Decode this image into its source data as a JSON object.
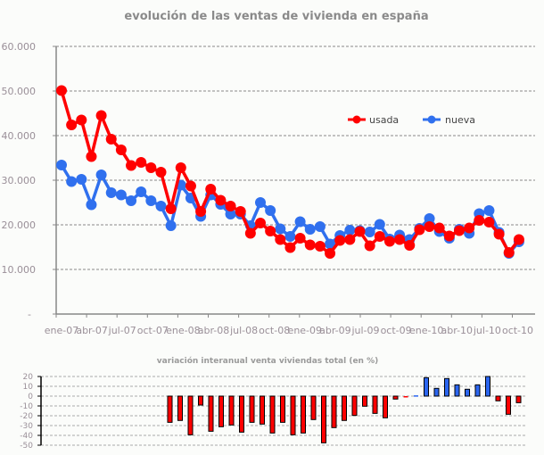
{
  "chart_data": [
    {
      "type": "line",
      "title": "evolución de las ventas de vivienda en españa",
      "x": [
        "ene-07",
        "feb-07",
        "mar-07",
        "abr-07",
        "may-07",
        "jun-07",
        "jul-07",
        "ago-07",
        "sep-07",
        "oct-07",
        "nov-07",
        "dic-07",
        "ene-08",
        "feb-08",
        "mar-08",
        "abr-08",
        "may-08",
        "jun-08",
        "jul-08",
        "ago-08",
        "sep-08",
        "oct-08",
        "nov-08",
        "dic-08",
        "ene-09",
        "feb-09",
        "mar-09",
        "abr-09",
        "may-09",
        "jun-09",
        "jul-09",
        "ago-09",
        "sep-09",
        "oct-09",
        "nov-09",
        "dic-09",
        "ene-10",
        "feb-10",
        "mar-10",
        "abr-10",
        "may-10",
        "jun-10",
        "jul-10",
        "ago-10",
        "sep-10",
        "oct-10",
        "nov-10"
      ],
      "xtick_labels": [
        "ene-07",
        "abr-07",
        "jul-07",
        "oct-07",
        "ene-08",
        "abr-08",
        "jul-08",
        "oct-08",
        "ene-09",
        "abr-09",
        "jul-09",
        "oct-09",
        "ene-10",
        "abr-10",
        "jul-10",
        "oct-10"
      ],
      "ytick_labels": [
        "-",
        "10.000",
        "20.000",
        "30.000",
        "40.000",
        "50.000",
        "60.000"
      ],
      "ylim": [
        0,
        60000
      ],
      "grid": true,
      "legend": "right",
      "series": [
        {
          "name": "usada",
          "color": "#ff0000",
          "values": [
            50100,
            42400,
            43500,
            35300,
            44500,
            39200,
            36800,
            33300,
            34000,
            32800,
            31800,
            23600,
            32800,
            28700,
            23000,
            28000,
            25500,
            24200,
            23000,
            18100,
            20400,
            18600,
            16700,
            14900,
            17000,
            15500,
            15200,
            13600,
            16500,
            16700,
            18500,
            15300,
            17400,
            16300,
            16700,
            15400,
            18900,
            19600,
            19300,
            17500,
            18700,
            19300,
            21000,
            20600,
            17900,
            13800,
            16700
          ]
        },
        {
          "name": "nueva",
          "color": "#3070ee",
          "values": [
            33400,
            29700,
            30200,
            24500,
            31200,
            27200,
            26700,
            25400,
            27400,
            25400,
            24200,
            19800,
            28900,
            26000,
            21900,
            26700,
            24600,
            22400,
            22400,
            19800,
            25000,
            23200,
            19100,
            17400,
            20700,
            19000,
            19600,
            15700,
            17600,
            18800,
            18700,
            18400,
            20100,
            16800,
            17700,
            16700,
            19200,
            21400,
            18500,
            17000,
            19000,
            18100,
            22500,
            23200,
            18300,
            13600,
            16200
          ]
        }
      ]
    },
    {
      "type": "bar",
      "title": "variación interanual venta viviendas total (en %)",
      "ytick_labels": [
        "20",
        "10",
        "0",
        "-10",
        "-20",
        "-30",
        "-40",
        "-50"
      ],
      "ylim": [
        -50,
        20
      ],
      "grid": true,
      "colors": {
        "negative": "#ff0000",
        "positive": "#2b66f0"
      },
      "values": [
        -26.7,
        -24.8,
        -39.4,
        -9.1,
        -35.8,
        -31.2,
        -29.4,
        -36.7,
        -26.7,
        -28.5,
        -37.6,
        -26.7,
        -39.4,
        -37.6,
        -23.9,
        -47.6,
        -32.1,
        -24.8,
        -19.7,
        -10.3,
        -17.6,
        -22.1,
        -3.0,
        -0.8,
        0.8,
        18.8,
        7.9,
        17.9,
        11.5,
        7.0,
        11.5,
        20.0,
        -4.8,
        -18.5,
        -6.7
      ]
    }
  ]
}
